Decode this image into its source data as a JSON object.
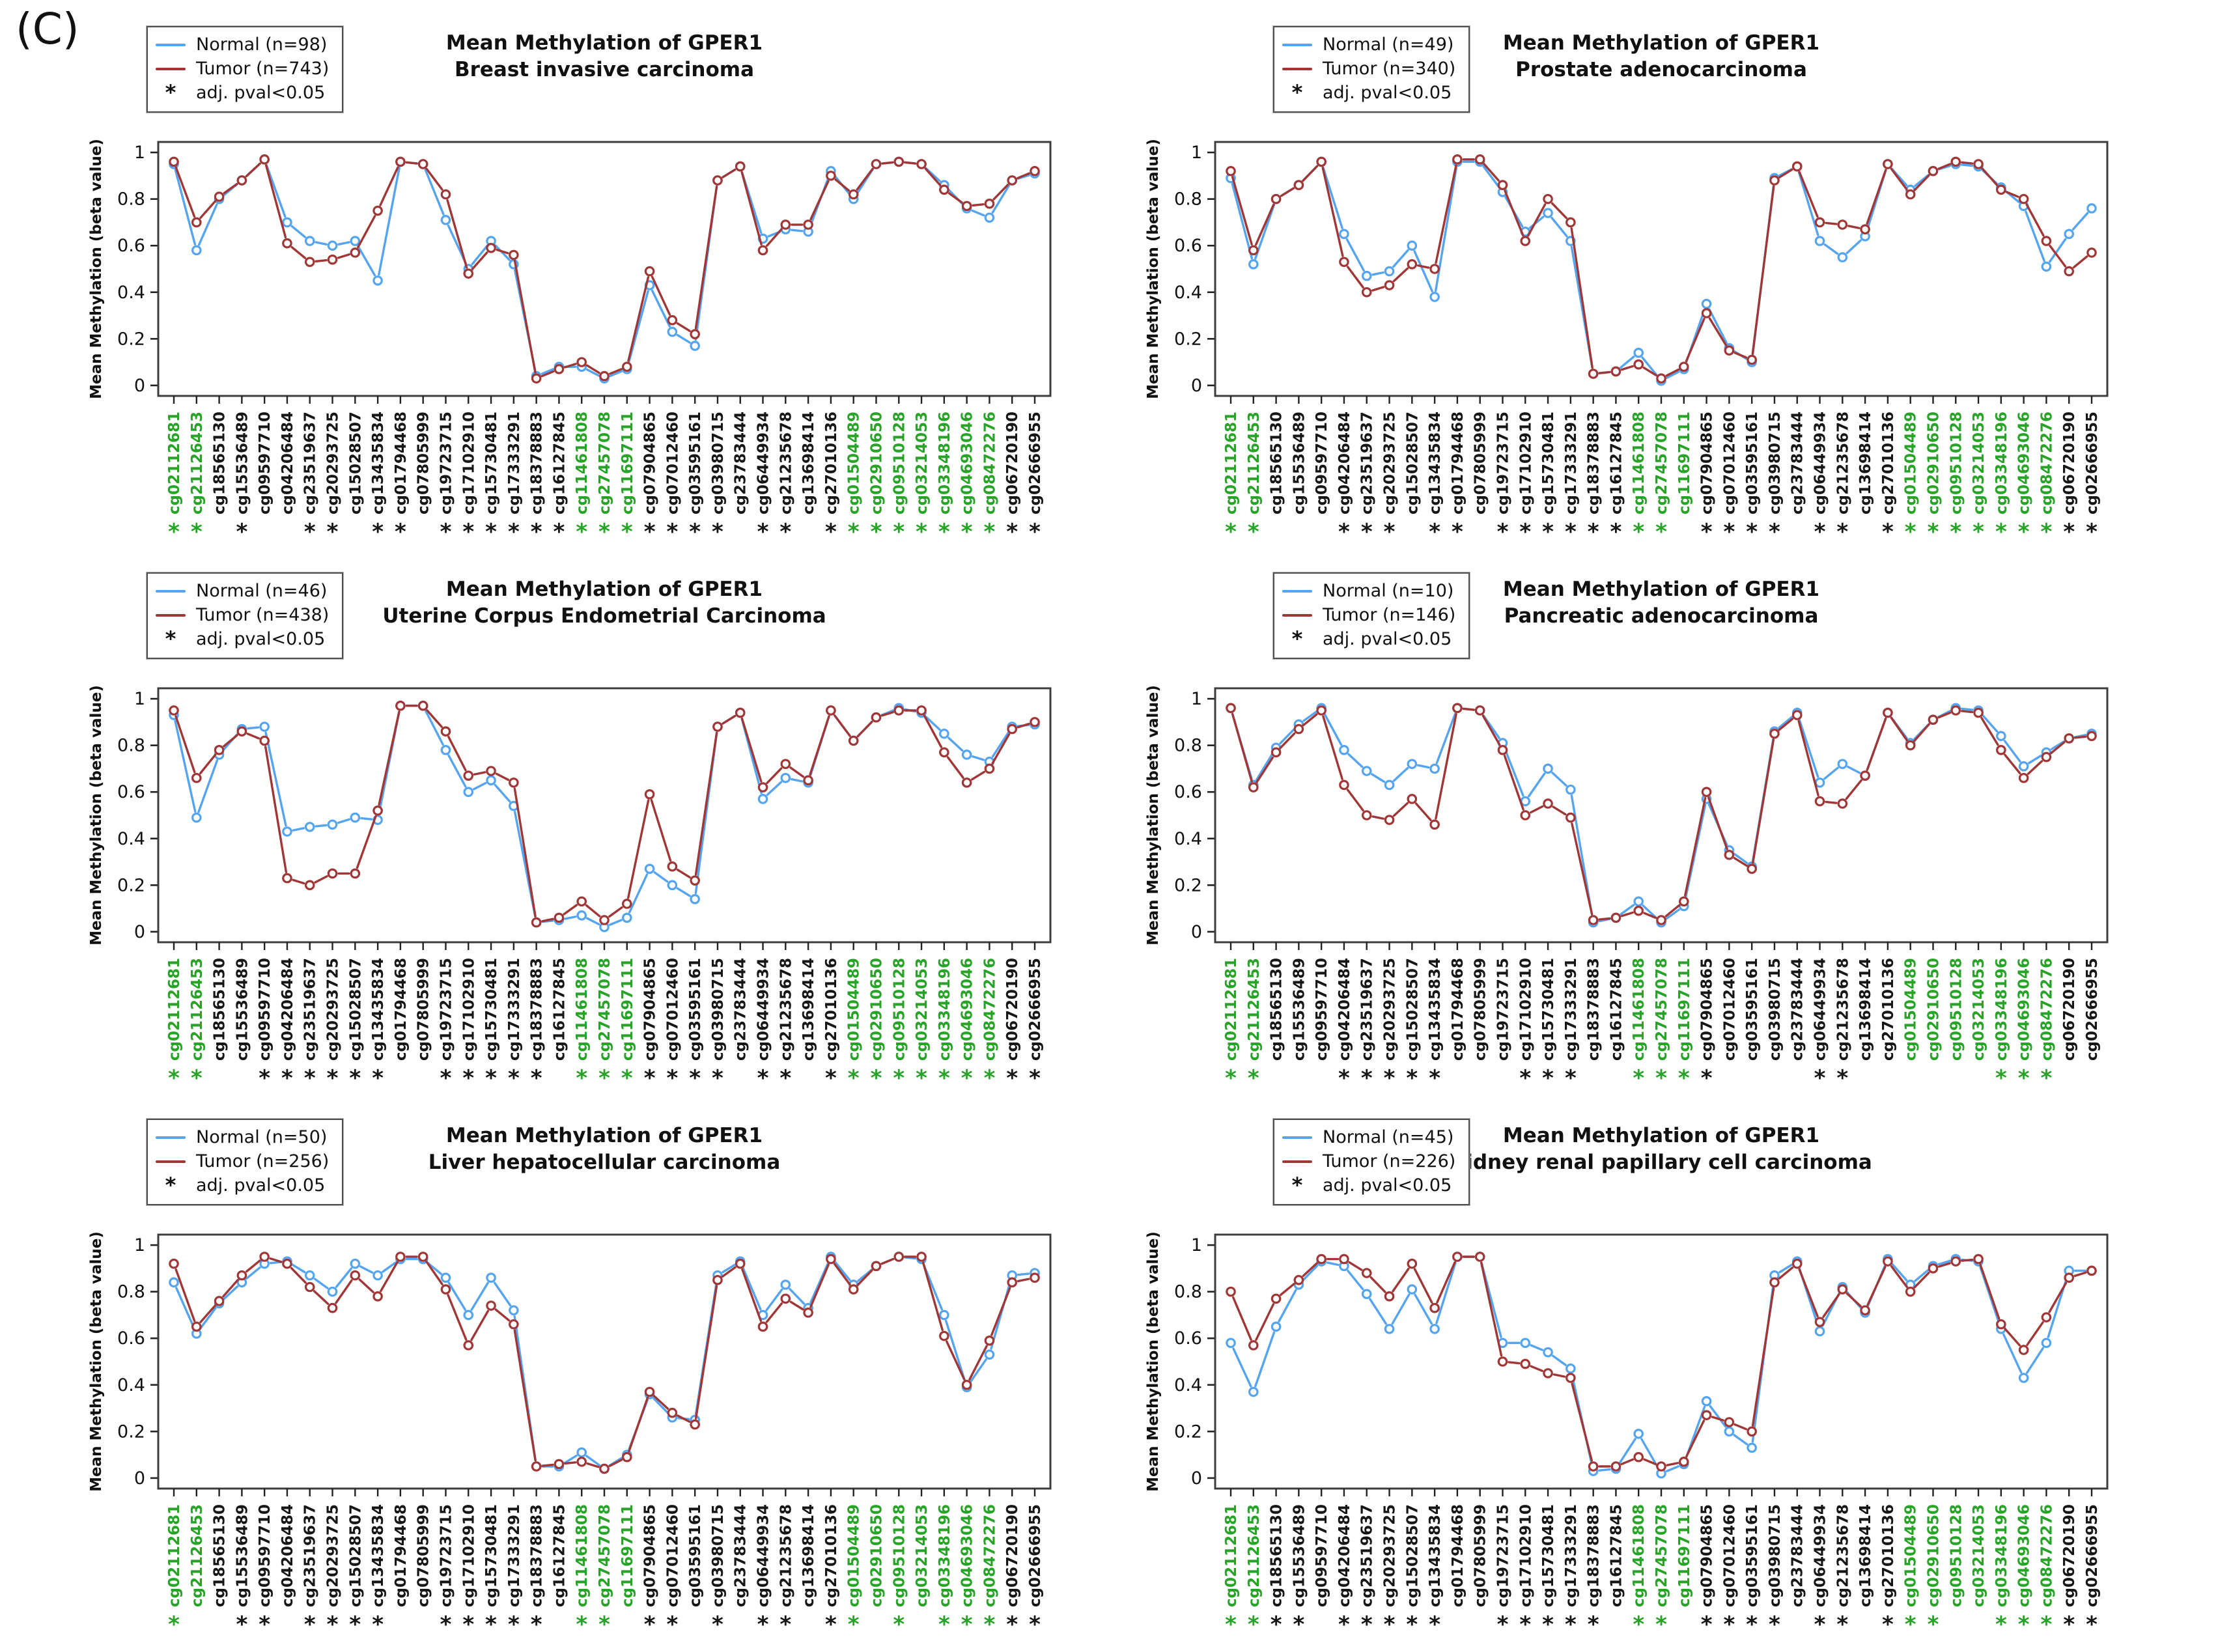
{
  "panel_label": "(C)",
  "colors": {
    "normal": "#54a4f0",
    "tumor": "#a03636",
    "green_label": "#27a327",
    "black_label": "#161616",
    "frame": "#3c3c3c"
  },
  "legend": {
    "pval_symbol": "*",
    "pval_label": "adj. pval<0.05"
  },
  "yaxis": {
    "label": "Mean Methylation (beta value)",
    "tick_values": [
      0,
      0.2,
      0.4,
      0.6,
      0.8,
      1
    ],
    "tick_labels": [
      "0",
      "0.2",
      "0.4",
      "0.6",
      "0.8",
      "1"
    ]
  },
  "chart_data": [
    {
      "type": "line",
      "title1": "Mean Methylation of GPER1",
      "title2": "Breast invasive carcinoma",
      "legend_normal": "Normal (n=98)",
      "legend_tumor": "Tumor (n=743)",
      "ylim": [
        0,
        1
      ],
      "series": [
        {
          "name": "Normal",
          "values": [
            0.95,
            0.58,
            0.8,
            0.88,
            0.97,
            0.7,
            0.62,
            0.6,
            0.62,
            0.45,
            0.96,
            0.95,
            0.71,
            0.5,
            0.62,
            0.52,
            0.04,
            0.08,
            0.08,
            0.03,
            0.07,
            0.43,
            0.23,
            0.17,
            0.88,
            0.94,
            0.63,
            0.67,
            0.66,
            0.92,
            0.8,
            0.95,
            0.96,
            0.95,
            0.86,
            0.76,
            0.72,
            0.88,
            0.91
          ]
        },
        {
          "name": "Tumor",
          "values": [
            0.96,
            0.7,
            0.81,
            0.88,
            0.97,
            0.61,
            0.53,
            0.54,
            0.57,
            0.75,
            0.96,
            0.95,
            0.82,
            0.48,
            0.59,
            0.56,
            0.03,
            0.07,
            0.1,
            0.04,
            0.08,
            0.49,
            0.28,
            0.22,
            0.88,
            0.94,
            0.58,
            0.69,
            0.69,
            0.9,
            0.82,
            0.95,
            0.96,
            0.95,
            0.84,
            0.77,
            0.78,
            0.88,
            0.92
          ]
        }
      ],
      "significant": [
        1,
        1,
        0,
        1,
        0,
        0,
        1,
        1,
        0,
        1,
        1,
        0,
        1,
        1,
        1,
        1,
        1,
        1,
        1,
        1,
        1,
        1,
        1,
        1,
        1,
        0,
        1,
        1,
        0,
        1,
        1,
        1,
        1,
        1,
        1,
        1,
        1,
        1,
        1
      ]
    },
    {
      "type": "line",
      "title1": "Mean Methylation of GPER1",
      "title2": "Prostate adenocarcinoma",
      "legend_normal": "Normal (n=49)",
      "legend_tumor": "Tumor (n=340)",
      "ylim": [
        0,
        1
      ],
      "series": [
        {
          "name": "Normal",
          "values": [
            0.89,
            0.52,
            0.8,
            0.86,
            0.96,
            0.65,
            0.47,
            0.49,
            0.6,
            0.38,
            0.96,
            0.96,
            0.83,
            0.66,
            0.74,
            0.62,
            0.05,
            0.06,
            0.14,
            0.02,
            0.07,
            0.35,
            0.16,
            0.1,
            0.89,
            0.94,
            0.62,
            0.55,
            0.64,
            0.95,
            0.84,
            0.92,
            0.95,
            0.94,
            0.85,
            0.77,
            0.51,
            0.65,
            0.76
          ]
        },
        {
          "name": "Tumor",
          "values": [
            0.92,
            0.58,
            0.8,
            0.86,
            0.96,
            0.53,
            0.4,
            0.43,
            0.52,
            0.5,
            0.97,
            0.97,
            0.86,
            0.62,
            0.8,
            0.7,
            0.05,
            0.06,
            0.09,
            0.03,
            0.08,
            0.31,
            0.15,
            0.11,
            0.88,
            0.94,
            0.7,
            0.69,
            0.67,
            0.95,
            0.82,
            0.92,
            0.96,
            0.95,
            0.84,
            0.8,
            0.62,
            0.49,
            0.57
          ]
        }
      ],
      "significant": [
        1,
        1,
        0,
        0,
        0,
        1,
        1,
        1,
        0,
        1,
        1,
        0,
        1,
        1,
        1,
        1,
        1,
        1,
        1,
        1,
        0,
        1,
        1,
        1,
        1,
        0,
        1,
        1,
        0,
        1,
        1,
        1,
        1,
        1,
        1,
        1,
        1,
        1,
        1
      ]
    },
    {
      "type": "line",
      "title1": "Mean Methylation of GPER1",
      "title2": "Uterine Corpus Endometrial Carcinoma",
      "legend_normal": "Normal (n=46)",
      "legend_tumor": "Tumor (n=438)",
      "ylim": [
        0,
        1
      ],
      "series": [
        {
          "name": "Normal",
          "values": [
            0.93,
            0.49,
            0.76,
            0.87,
            0.88,
            0.43,
            0.45,
            0.46,
            0.49,
            0.48,
            0.97,
            0.97,
            0.78,
            0.6,
            0.65,
            0.54,
            0.04,
            0.05,
            0.07,
            0.02,
            0.06,
            0.27,
            0.2,
            0.14,
            0.88,
            0.94,
            0.57,
            0.66,
            0.64,
            0.95,
            0.82,
            0.92,
            0.96,
            0.94,
            0.85,
            0.76,
            0.73,
            0.88,
            0.89
          ]
        },
        {
          "name": "Tumor",
          "values": [
            0.95,
            0.66,
            0.78,
            0.86,
            0.82,
            0.23,
            0.2,
            0.25,
            0.25,
            0.52,
            0.97,
            0.97,
            0.86,
            0.67,
            0.69,
            0.64,
            0.04,
            0.06,
            0.13,
            0.05,
            0.12,
            0.59,
            0.28,
            0.22,
            0.88,
            0.94,
            0.62,
            0.72,
            0.65,
            0.95,
            0.82,
            0.92,
            0.95,
            0.95,
            0.77,
            0.64,
            0.7,
            0.87,
            0.9
          ]
        }
      ],
      "significant": [
        1,
        1,
        0,
        0,
        1,
        1,
        1,
        1,
        1,
        1,
        0,
        0,
        1,
        1,
        1,
        1,
        1,
        0,
        1,
        1,
        1,
        1,
        1,
        1,
        1,
        0,
        1,
        1,
        0,
        1,
        1,
        1,
        1,
        1,
        1,
        1,
        1,
        1,
        1
      ]
    },
    {
      "type": "line",
      "title1": "Mean Methylation of GPER1",
      "title2": "Pancreatic adenocarcinoma",
      "legend_normal": "Normal (n=10)",
      "legend_tumor": "Tumor (n=146)",
      "ylim": [
        0,
        1
      ],
      "series": [
        {
          "name": "Normal",
          "values": [
            0.96,
            0.63,
            0.79,
            0.89,
            0.96,
            0.78,
            0.69,
            0.63,
            0.72,
            0.7,
            0.96,
            0.95,
            0.81,
            0.56,
            0.7,
            0.61,
            0.04,
            0.06,
            0.13,
            0.04,
            0.11,
            0.57,
            0.35,
            0.28,
            0.86,
            0.94,
            0.64,
            0.72,
            0.67,
            0.94,
            0.81,
            0.91,
            0.96,
            0.95,
            0.84,
            0.71,
            0.77,
            0.83,
            0.85
          ]
        },
        {
          "name": "Tumor",
          "values": [
            0.96,
            0.62,
            0.77,
            0.87,
            0.95,
            0.63,
            0.5,
            0.48,
            0.57,
            0.46,
            0.96,
            0.95,
            0.78,
            0.5,
            0.55,
            0.49,
            0.05,
            0.06,
            0.09,
            0.05,
            0.13,
            0.6,
            0.33,
            0.27,
            0.85,
            0.93,
            0.56,
            0.55,
            0.67,
            0.94,
            0.8,
            0.91,
            0.95,
            0.94,
            0.78,
            0.66,
            0.75,
            0.83,
            0.84
          ]
        }
      ],
      "significant": [
        1,
        1,
        0,
        0,
        0,
        1,
        1,
        1,
        1,
        1,
        0,
        0,
        0,
        1,
        1,
        1,
        0,
        0,
        1,
        1,
        1,
        1,
        0,
        0,
        0,
        0,
        1,
        1,
        0,
        0,
        0,
        0,
        0,
        0,
        1,
        1,
        1,
        0,
        0
      ]
    },
    {
      "type": "line",
      "title1": "Mean Methylation of GPER1",
      "title2": "Liver hepatocellular carcinoma",
      "legend_normal": "Normal (n=50)",
      "legend_tumor": "Tumor (n=256)",
      "ylim": [
        0,
        1
      ],
      "series": [
        {
          "name": "Normal",
          "values": [
            0.84,
            0.62,
            0.75,
            0.84,
            0.92,
            0.93,
            0.87,
            0.8,
            0.92,
            0.87,
            0.94,
            0.94,
            0.86,
            0.7,
            0.86,
            0.72,
            0.05,
            0.05,
            0.11,
            0.04,
            0.1,
            0.36,
            0.26,
            0.25,
            0.87,
            0.93,
            0.7,
            0.83,
            0.73,
            0.95,
            0.83,
            0.91,
            0.95,
            0.94,
            0.7,
            0.39,
            0.53,
            0.87,
            0.88
          ]
        },
        {
          "name": "Tumor",
          "values": [
            0.92,
            0.65,
            0.76,
            0.87,
            0.95,
            0.92,
            0.82,
            0.73,
            0.87,
            0.78,
            0.95,
            0.95,
            0.81,
            0.57,
            0.74,
            0.66,
            0.05,
            0.06,
            0.07,
            0.04,
            0.09,
            0.37,
            0.28,
            0.23,
            0.85,
            0.92,
            0.65,
            0.77,
            0.71,
            0.94,
            0.81,
            0.91,
            0.95,
            0.95,
            0.61,
            0.4,
            0.59,
            0.84,
            0.86
          ]
        }
      ],
      "significant": [
        1,
        0,
        0,
        1,
        1,
        0,
        1,
        1,
        1,
        1,
        0,
        0,
        1,
        1,
        1,
        1,
        1,
        0,
        1,
        1,
        0,
        1,
        1,
        0,
        1,
        0,
        1,
        1,
        0,
        1,
        1,
        0,
        1,
        0,
        1,
        1,
        1,
        1,
        1
      ]
    },
    {
      "type": "line",
      "title1": "Mean Methylation of GPER1",
      "title2": "Kidney renal papillary cell carcinoma",
      "legend_normal": "Normal (n=45)",
      "legend_tumor": "Tumor (n=226)",
      "ylim": [
        0,
        1
      ],
      "series": [
        {
          "name": "Normal",
          "values": [
            0.58,
            0.37,
            0.65,
            0.83,
            0.93,
            0.91,
            0.79,
            0.64,
            0.81,
            0.64,
            0.95,
            0.95,
            0.58,
            0.58,
            0.54,
            0.47,
            0.03,
            0.04,
            0.19,
            0.02,
            0.06,
            0.33,
            0.2,
            0.13,
            0.87,
            0.93,
            0.63,
            0.82,
            0.71,
            0.94,
            0.83,
            0.91,
            0.94,
            0.93,
            0.64,
            0.43,
            0.58,
            0.89,
            0.89
          ]
        },
        {
          "name": "Tumor",
          "values": [
            0.8,
            0.57,
            0.77,
            0.85,
            0.94,
            0.94,
            0.88,
            0.78,
            0.92,
            0.73,
            0.95,
            0.95,
            0.5,
            0.49,
            0.45,
            0.43,
            0.05,
            0.05,
            0.09,
            0.05,
            0.07,
            0.27,
            0.24,
            0.2,
            0.84,
            0.92,
            0.67,
            0.81,
            0.72,
            0.93,
            0.8,
            0.9,
            0.93,
            0.94,
            0.66,
            0.55,
            0.69,
            0.86,
            0.89
          ]
        }
      ],
      "significant": [
        1,
        1,
        1,
        1,
        0,
        1,
        1,
        1,
        1,
        1,
        0,
        0,
        1,
        1,
        1,
        1,
        1,
        0,
        1,
        1,
        0,
        1,
        1,
        1,
        1,
        0,
        1,
        1,
        0,
        1,
        1,
        1,
        0,
        0,
        1,
        1,
        1,
        1,
        1
      ]
    }
  ],
  "probes": [
    "cg02112681",
    "cg21126453",
    "cg18565130",
    "cg15536489",
    "cg09597710",
    "cg04206484",
    "cg23519637",
    "cg20293725",
    "cg15028507",
    "cg13435834",
    "cg01794468",
    "cg07805999",
    "cg19723715",
    "cg17102910",
    "cg15730481",
    "cg17333291",
    "cg18378883",
    "cg16127845",
    "cg11461808",
    "cg27457078",
    "cg11697111",
    "cg07904865",
    "cg07012460",
    "cg03595161",
    "cg03980715",
    "cg23783444",
    "cg06449934",
    "cg21235678",
    "cg13698414",
    "cg27010136",
    "cg01504489",
    "cg02910650",
    "cg09510128",
    "cg03214053",
    "cg03348196",
    "cg04693046",
    "cg08472276",
    "cg06720190",
    "cg02666955"
  ],
  "green_probe_flags": [
    true,
    true,
    false,
    false,
    false,
    false,
    false,
    false,
    false,
    false,
    false,
    false,
    false,
    false,
    false,
    false,
    false,
    false,
    true,
    true,
    true,
    false,
    false,
    false,
    false,
    false,
    false,
    false,
    false,
    false,
    true,
    true,
    true,
    true,
    true,
    true,
    true,
    false,
    false
  ]
}
